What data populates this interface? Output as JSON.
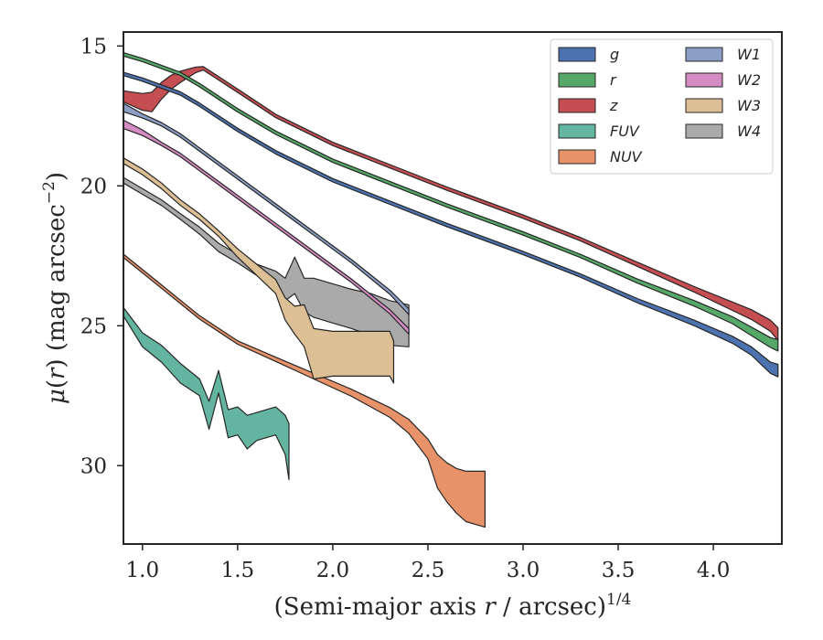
{
  "chart_data": {
    "type": "area",
    "xlabel": "(Semi-major axis r / arcsec)^1/4",
    "ylabel": "μ(r) (mag arcsec^−2)",
    "xlim": [
      0.9,
      4.36
    ],
    "ylim": [
      32.8,
      14.5
    ],
    "y_inverted": true,
    "x_ticks": [
      1.0,
      1.5,
      2.0,
      2.5,
      3.0,
      3.5,
      4.0
    ],
    "x_tick_labels": [
      "1.0",
      "1.5",
      "2.0",
      "2.5",
      "3.0",
      "3.5",
      "4.0"
    ],
    "y_ticks": [
      15,
      20,
      25,
      30
    ],
    "y_tick_labels": [
      "15",
      "20",
      "25",
      "30"
    ],
    "grid": false,
    "legend_position": "top-right",
    "legend_columns": 2,
    "series": [
      {
        "name": "g",
        "color": "#4c72b0",
        "x": [
          0.9,
          1.0,
          1.1,
          1.2,
          1.3,
          1.5,
          1.7,
          2.0,
          2.3,
          2.6,
          3.0,
          3.3,
          3.6,
          3.9,
          4.1,
          4.2,
          4.3,
          4.34
        ],
        "y": [
          16.0,
          16.2,
          16.45,
          16.7,
          17.1,
          18.0,
          18.8,
          19.8,
          20.6,
          21.4,
          22.4,
          23.2,
          24.1,
          24.9,
          25.5,
          25.9,
          26.5,
          26.6
        ],
        "width": [
          0.12,
          0.12,
          0.12,
          0.12,
          0.12,
          0.12,
          0.12,
          0.12,
          0.12,
          0.12,
          0.12,
          0.12,
          0.15,
          0.2,
          0.25,
          0.3,
          0.4,
          0.45
        ]
      },
      {
        "name": "r",
        "color": "#55a868",
        "x": [
          0.9,
          1.0,
          1.1,
          1.2,
          1.3,
          1.5,
          1.7,
          2.0,
          2.3,
          2.6,
          3.0,
          3.3,
          3.6,
          3.9,
          4.1,
          4.2,
          4.3,
          4.34
        ],
        "y": [
          15.3,
          15.5,
          15.75,
          16.0,
          16.4,
          17.3,
          18.1,
          19.1,
          19.9,
          20.7,
          21.7,
          22.5,
          23.4,
          24.2,
          24.8,
          25.2,
          25.6,
          25.7
        ],
        "width": [
          0.12,
          0.12,
          0.12,
          0.12,
          0.12,
          0.12,
          0.12,
          0.12,
          0.12,
          0.12,
          0.12,
          0.12,
          0.15,
          0.2,
          0.25,
          0.3,
          0.35,
          0.4
        ]
      },
      {
        "name": "z",
        "color": "#c44e52",
        "x": [
          0.9,
          1.0,
          1.05,
          1.1,
          1.15,
          1.2,
          1.28,
          1.32,
          1.5,
          1.7,
          2.0,
          2.3,
          2.6,
          3.0,
          3.3,
          3.6,
          3.9,
          4.1,
          4.2,
          4.3,
          4.34
        ],
        "y": [
          16.8,
          17.0,
          17.0,
          16.6,
          16.3,
          16.1,
          15.85,
          15.8,
          16.6,
          17.5,
          18.5,
          19.3,
          20.1,
          21.1,
          21.9,
          22.8,
          23.7,
          24.3,
          24.6,
          25.0,
          25.3
        ],
        "width": [
          0.4,
          0.6,
          0.7,
          0.6,
          0.5,
          0.4,
          0.2,
          0.12,
          0.12,
          0.12,
          0.12,
          0.12,
          0.12,
          0.12,
          0.12,
          0.15,
          0.2,
          0.3,
          0.35,
          0.4,
          0.45
        ]
      },
      {
        "name": "FUV",
        "color": "#64b5a0",
        "x": [
          0.9,
          1.0,
          1.1,
          1.2,
          1.3,
          1.35,
          1.4,
          1.45,
          1.5,
          1.55,
          1.6,
          1.7,
          1.75,
          1.77
        ],
        "y": [
          24.5,
          25.5,
          26.0,
          26.7,
          27.2,
          28.2,
          27.0,
          28.5,
          28.4,
          28.8,
          28.6,
          28.4,
          28.9,
          29.5
        ],
        "width": [
          0.3,
          0.5,
          0.6,
          0.7,
          0.6,
          1.0,
          0.8,
          1.0,
          1.0,
          1.2,
          1.0,
          1.0,
          1.4,
          2.0
        ]
      },
      {
        "name": "NUV",
        "color": "#e8926a",
        "x": [
          0.9,
          1.1,
          1.3,
          1.5,
          1.7,
          1.9,
          2.1,
          2.3,
          2.4,
          2.5,
          2.55,
          2.6,
          2.65,
          2.7,
          2.75,
          2.8
        ],
        "y": [
          22.5,
          23.6,
          24.7,
          25.6,
          26.2,
          26.8,
          27.4,
          28.1,
          28.6,
          29.4,
          30.2,
          30.6,
          30.9,
          31.1,
          31.15,
          31.2
        ],
        "width": [
          0.12,
          0.12,
          0.12,
          0.12,
          0.15,
          0.2,
          0.25,
          0.35,
          0.5,
          0.7,
          1.2,
          1.4,
          1.6,
          1.8,
          1.9,
          2.0
        ]
      },
      {
        "name": "W1",
        "color": "#8c9ec4",
        "x": [
          0.9,
          1.0,
          1.1,
          1.2,
          1.3,
          1.5,
          1.7,
          1.9,
          2.1,
          2.3,
          2.4
        ],
        "y": [
          17.2,
          17.5,
          17.8,
          18.2,
          18.7,
          19.7,
          20.7,
          21.7,
          22.7,
          23.8,
          24.5
        ],
        "width": [
          0.3,
          0.15,
          0.12,
          0.12,
          0.12,
          0.12,
          0.12,
          0.12,
          0.12,
          0.15,
          0.2
        ]
      },
      {
        "name": "W2",
        "color": "#d48cc2",
        "x": [
          0.9,
          1.0,
          1.1,
          1.2,
          1.3,
          1.5,
          1.7,
          1.9,
          2.1,
          2.3,
          2.4
        ],
        "y": [
          17.8,
          18.1,
          18.5,
          18.9,
          19.4,
          20.4,
          21.4,
          22.4,
          23.4,
          24.5,
          25.2
        ],
        "width": [
          0.3,
          0.2,
          0.12,
          0.12,
          0.12,
          0.12,
          0.12,
          0.12,
          0.12,
          0.15,
          0.2
        ]
      },
      {
        "name": "W3",
        "color": "#dcbf94",
        "x": [
          0.9,
          1.0,
          1.1,
          1.2,
          1.3,
          1.4,
          1.5,
          1.6,
          1.7,
          1.75,
          1.8,
          1.85,
          1.9,
          2.0,
          2.1,
          2.2,
          2.3,
          2.32
        ],
        "y": [
          19.1,
          19.5,
          20.0,
          20.6,
          21.1,
          21.7,
          22.4,
          23.0,
          23.6,
          24.4,
          24.8,
          25.0,
          26.0,
          26.0,
          26.0,
          26.0,
          26.0,
          26.3
        ],
        "width": [
          0.2,
          0.2,
          0.2,
          0.2,
          0.2,
          0.2,
          0.3,
          0.4,
          0.5,
          0.8,
          1.0,
          1.5,
          1.8,
          1.6,
          1.6,
          1.6,
          1.6,
          1.5
        ]
      },
      {
        "name": "W4",
        "color": "#aaaaaa",
        "x": [
          0.9,
          1.0,
          1.1,
          1.2,
          1.3,
          1.4,
          1.5,
          1.6,
          1.7,
          1.75,
          1.8,
          1.85,
          1.9,
          2.0,
          2.1,
          2.2,
          2.3,
          2.4
        ],
        "y": [
          19.8,
          20.2,
          20.6,
          21.1,
          21.6,
          22.2,
          22.6,
          23.0,
          23.3,
          23.7,
          23.2,
          23.9,
          24.0,
          24.2,
          24.4,
          24.6,
          24.9,
          25.0
        ],
        "width": [
          0.2,
          0.2,
          0.2,
          0.2,
          0.25,
          0.3,
          0.3,
          0.4,
          0.5,
          0.8,
          1.3,
          1.2,
          1.4,
          1.4,
          1.4,
          1.5,
          1.6,
          1.5
        ]
      }
    ]
  }
}
